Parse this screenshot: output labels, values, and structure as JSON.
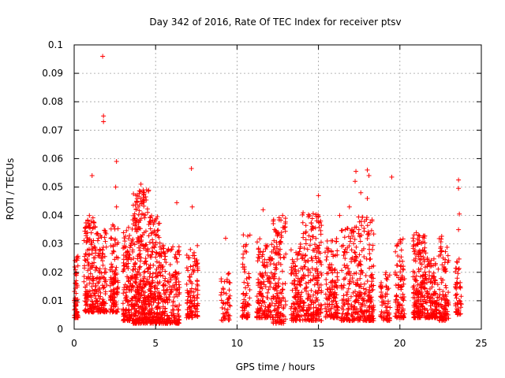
{
  "chart_data": {
    "type": "scatter",
    "title": "Day 342 of 2016, Rate Of TEC Index for receiver ptsv",
    "xlabel": "GPS time / hours",
    "ylabel": "ROTI / TECUs",
    "xlim": [
      0,
      25
    ],
    "ylim": [
      0,
      0.1
    ],
    "x_ticks": [
      "0",
      "5",
      "10",
      "15",
      "20",
      "25"
    ],
    "y_ticks": [
      "0",
      "0.01",
      "0.02",
      "0.03",
      "0.04",
      "0.05",
      "0.06",
      "0.07",
      "0.08",
      "0.09",
      "0.1"
    ],
    "grid": true,
    "marker": "+",
    "color": "#ff0000",
    "bands": [
      {
        "x": [
          0.0,
          0.25
        ],
        "n": 60,
        "y_low": 0.004,
        "y_high": 0.026
      },
      {
        "x": [
          0.6,
          1.3
        ],
        "n": 150,
        "y_low": 0.006,
        "y_high": 0.04
      },
      {
        "x": [
          1.3,
          2.0
        ],
        "n": 130,
        "y_low": 0.006,
        "y_high": 0.035
      },
      {
        "x": [
          2.2,
          2.7
        ],
        "n": 110,
        "y_low": 0.006,
        "y_high": 0.038
      },
      {
        "x": [
          3.0,
          3.6
        ],
        "n": 140,
        "y_low": 0.003,
        "y_high": 0.038
      },
      {
        "x": [
          3.6,
          4.6
        ],
        "n": 320,
        "y_low": 0.002,
        "y_high": 0.049
      },
      {
        "x": [
          4.6,
          5.3
        ],
        "n": 200,
        "y_low": 0.002,
        "y_high": 0.04
      },
      {
        "x": [
          5.3,
          6.5
        ],
        "n": 200,
        "y_low": 0.002,
        "y_high": 0.03
      },
      {
        "x": [
          6.9,
          7.6
        ],
        "n": 110,
        "y_low": 0.004,
        "y_high": 0.03
      },
      {
        "x": [
          9.0,
          9.6
        ],
        "n": 50,
        "y_low": 0.003,
        "y_high": 0.02
      },
      {
        "x": [
          10.3,
          10.8
        ],
        "n": 70,
        "y_low": 0.004,
        "y_high": 0.034
      },
      {
        "x": [
          11.2,
          12.2
        ],
        "n": 160,
        "y_low": 0.004,
        "y_high": 0.032
      },
      {
        "x": [
          12.2,
          13.0
        ],
        "n": 150,
        "y_low": 0.002,
        "y_high": 0.04
      },
      {
        "x": [
          13.3,
          14.0
        ],
        "n": 120,
        "y_low": 0.003,
        "y_high": 0.03
      },
      {
        "x": [
          14.0,
          15.2
        ],
        "n": 220,
        "y_low": 0.003,
        "y_high": 0.041
      },
      {
        "x": [
          15.4,
          16.2
        ],
        "n": 140,
        "y_low": 0.004,
        "y_high": 0.032
      },
      {
        "x": [
          16.4,
          17.3
        ],
        "n": 150,
        "y_low": 0.003,
        "y_high": 0.036
      },
      {
        "x": [
          17.3,
          18.4
        ],
        "n": 200,
        "y_low": 0.003,
        "y_high": 0.04
      },
      {
        "x": [
          18.8,
          19.4
        ],
        "n": 60,
        "y_low": 0.003,
        "y_high": 0.02
      },
      {
        "x": [
          19.7,
          20.3
        ],
        "n": 90,
        "y_low": 0.004,
        "y_high": 0.032
      },
      {
        "x": [
          20.8,
          21.6
        ],
        "n": 200,
        "y_low": 0.004,
        "y_high": 0.034
      },
      {
        "x": [
          21.6,
          22.3
        ],
        "n": 120,
        "y_low": 0.004,
        "y_high": 0.025
      },
      {
        "x": [
          22.3,
          23.0
        ],
        "n": 110,
        "y_low": 0.003,
        "y_high": 0.033
      },
      {
        "x": [
          23.4,
          23.8
        ],
        "n": 50,
        "y_low": 0.005,
        "y_high": 0.025
      }
    ],
    "notable_points": [
      {
        "x": 1.75,
        "y": 0.096
      },
      {
        "x": 1.8,
        "y": 0.075
      },
      {
        "x": 1.8,
        "y": 0.073
      },
      {
        "x": 1.1,
        "y": 0.054
      },
      {
        "x": 2.6,
        "y": 0.059
      },
      {
        "x": 2.55,
        "y": 0.05
      },
      {
        "x": 2.6,
        "y": 0.043
      },
      {
        "x": 4.1,
        "y": 0.051
      },
      {
        "x": 4.45,
        "y": 0.049
      },
      {
        "x": 7.2,
        "y": 0.0565
      },
      {
        "x": 7.25,
        "y": 0.043
      },
      {
        "x": 6.3,
        "y": 0.0445
      },
      {
        "x": 9.3,
        "y": 0.032
      },
      {
        "x": 11.6,
        "y": 0.042
      },
      {
        "x": 12.8,
        "y": 0.04
      },
      {
        "x": 16.3,
        "y": 0.04
      },
      {
        "x": 17.3,
        "y": 0.0555
      },
      {
        "x": 17.25,
        "y": 0.052
      },
      {
        "x": 17.6,
        "y": 0.048
      },
      {
        "x": 18.0,
        "y": 0.056
      },
      {
        "x": 18.1,
        "y": 0.054
      },
      {
        "x": 18.0,
        "y": 0.046
      },
      {
        "x": 19.5,
        "y": 0.0535
      },
      {
        "x": 23.6,
        "y": 0.0525
      },
      {
        "x": 23.6,
        "y": 0.0495
      },
      {
        "x": 23.65,
        "y": 0.0405
      },
      {
        "x": 23.6,
        "y": 0.035
      },
      {
        "x": 15.0,
        "y": 0.047
      },
      {
        "x": 16.9,
        "y": 0.043
      }
    ]
  }
}
